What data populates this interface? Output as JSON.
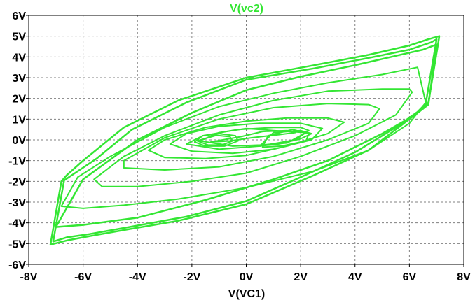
{
  "chart_data": {
    "type": "line",
    "title": "V(vc2)",
    "xlabel": "V(VC1)",
    "ylabel": "",
    "xlim": [
      -8,
      8
    ],
    "ylim": [
      -6,
      6
    ],
    "x_ticks": [
      -8,
      -6,
      -4,
      -2,
      0,
      2,
      4,
      6,
      8
    ],
    "x_tick_labels": [
      "-8V",
      "-6V",
      "-4V",
      "-2V",
      "0V",
      "2V",
      "4V",
      "6V",
      "8V"
    ],
    "y_ticks": [
      6,
      5,
      4,
      3,
      2,
      1,
      0,
      -1,
      -2,
      -3,
      -4,
      -5,
      -6
    ],
    "y_tick_labels": [
      "6V",
      "5V",
      "4V",
      "3V",
      "2V",
      "1V",
      "0V",
      "-1V",
      "-2V",
      "-3V",
      "-4V",
      "-5V",
      "-6V"
    ],
    "grid": true,
    "legend": "none",
    "colors": {
      "trace": "#33e633",
      "title": "#33e633",
      "grid": "#808080",
      "frame": "#000000"
    },
    "series": [
      {
        "values_description": "hysteresis orbit",
        "x": [
          7.1,
          6.7,
          6.5,
          5.8,
          4.5,
          2.5,
          0.0,
          -2.5,
          -4.5,
          -6.0,
          -6.6,
          -7.2,
          -6.8,
          -6.6,
          -6.0,
          -4.5,
          -2.5,
          0.0,
          2.5,
          4.5,
          6.0,
          6.7,
          7.1
        ],
        "y": [
          5.0,
          1.8,
          1.5,
          0.8,
          -0.5,
          -1.7,
          -3.1,
          -3.9,
          -4.35,
          -4.7,
          -4.85,
          -5.05,
          -2.0,
          -1.7,
          -1.0,
          0.6,
          1.9,
          3.0,
          3.6,
          4.1,
          4.55,
          4.85,
          5.0
        ]
      },
      {
        "x": [
          7.0,
          6.6,
          6.3,
          5.5,
          4.0,
          2.0,
          0.0,
          -2.2,
          -4.3,
          -5.8,
          -6.6,
          -7.1,
          -6.7,
          -6.3,
          -5.5,
          -4.2,
          -2.2,
          0.0,
          2.5,
          4.5,
          6.0,
          6.8,
          7.0
        ],
        "y": [
          4.85,
          1.75,
          1.35,
          0.6,
          -0.6,
          -1.8,
          -2.95,
          -3.7,
          -4.2,
          -4.55,
          -4.7,
          -4.9,
          -1.95,
          -1.6,
          -0.9,
          0.5,
          1.8,
          2.9,
          3.45,
          3.95,
          4.35,
          4.7,
          4.85
        ]
      },
      {
        "x": [
          7.0,
          6.7,
          6.2,
          5.0,
          3.0,
          1.0,
          -1.5,
          -4.0,
          -6.0,
          -7.0,
          -6.0,
          -4.0,
          -2.0,
          0.0,
          2.0,
          4.0,
          5.5,
          6.5,
          7.0
        ],
        "y": [
          4.6,
          1.7,
          1.2,
          0.3,
          -1.0,
          -1.9,
          -2.9,
          -3.75,
          -4.1,
          -4.2,
          -1.9,
          0.0,
          1.3,
          2.4,
          3.05,
          3.6,
          4.05,
          4.35,
          4.6
        ]
      },
      {
        "x": [
          6.6,
          6.0,
          4.5,
          2.5,
          0.0,
          -2.5,
          -4.5,
          -6.0,
          -6.8,
          -6.2,
          -5.0,
          -3.0,
          -1.0,
          1.0,
          3.0,
          5.0,
          6.3,
          6.6
        ],
        "y": [
          1.8,
          0.8,
          -0.5,
          -1.5,
          -2.3,
          -2.85,
          -3.15,
          -3.3,
          -3.2,
          -1.8,
          -0.8,
          0.6,
          1.6,
          2.25,
          2.75,
          3.15,
          3.5,
          1.8
        ]
      },
      {
        "x": [
          6.1,
          5.5,
          4.0,
          2.0,
          0.0,
          -2.0,
          -4.0,
          -5.3,
          -5.6,
          -4.5,
          -3.0,
          -1.0,
          1.0,
          3.0,
          5.0,
          6.0,
          6.1
        ],
        "y": [
          2.3,
          1.2,
          0.2,
          -0.8,
          -1.6,
          -2.0,
          -2.25,
          -2.25,
          -1.9,
          -0.8,
          0.2,
          1.2,
          1.9,
          2.35,
          2.45,
          2.45,
          2.3
        ]
      },
      {
        "x": [
          4.9,
          4.5,
          3.0,
          1.0,
          -1.0,
          -3.0,
          -4.5,
          -4.5,
          -3.0,
          -1.0,
          1.0,
          3.0,
          4.5,
          4.9
        ],
        "y": [
          1.5,
          0.8,
          0.0,
          -0.8,
          -1.3,
          -1.45,
          -1.35,
          -1.0,
          0.1,
          1.0,
          1.55,
          1.75,
          1.7,
          1.5
        ]
      },
      {
        "x": [
          3.6,
          3.0,
          1.5,
          0.0,
          -1.5,
          -3.0,
          -3.6,
          -3.0,
          -1.5,
          0.0,
          1.5,
          3.0,
          3.6
        ],
        "y": [
          0.85,
          0.3,
          -0.3,
          -0.75,
          -0.9,
          -0.85,
          -0.5,
          0.0,
          0.6,
          0.9,
          1.05,
          1.05,
          0.85
        ]
      },
      {
        "x": [
          2.8,
          2.4,
          1.0,
          -0.5,
          -2.0,
          -2.8,
          -2.2,
          -1.0,
          0.5,
          2.0,
          2.8
        ],
        "y": [
          0.55,
          0.0,
          -0.45,
          -0.65,
          -0.55,
          -0.2,
          0.3,
          0.65,
          0.8,
          0.8,
          0.55
        ]
      },
      {
        "x": [
          2.3,
          1.8,
          0.5,
          -1.0,
          -2.2,
          -1.6,
          -0.3,
          1.0,
          2.0,
          2.3
        ],
        "y": [
          0.45,
          0.0,
          -0.3,
          -0.45,
          -0.2,
          0.2,
          0.5,
          0.6,
          0.6,
          0.45
        ]
      },
      {
        "x": [
          2.2,
          1.5,
          0.5,
          -0.5,
          -1.7,
          -1.0,
          0.0,
          1.0,
          2.2
        ],
        "y": [
          0.35,
          -0.15,
          -0.25,
          -0.3,
          -0.05,
          0.35,
          0.55,
          0.45,
          0.35
        ]
      },
      {
        "x": [
          -1.9,
          -1.5,
          -0.8,
          -0.3,
          -0.4,
          -1.0,
          -1.6,
          -1.9
        ],
        "y": [
          -0.1,
          -0.3,
          -0.3,
          -0.05,
          0.2,
          0.3,
          0.2,
          -0.1
        ]
      },
      {
        "x": [
          -1.8,
          -1.4,
          -0.9,
          -0.5,
          -0.6,
          -1.1,
          -1.8
        ],
        "y": [
          -0.05,
          -0.25,
          -0.25,
          -0.05,
          0.15,
          0.22,
          -0.05
        ]
      },
      {
        "x": [
          -1.3,
          -0.6,
          0.2,
          1.2,
          1.8,
          1.5,
          0.6,
          -0.2,
          -1.3
        ],
        "y": [
          -0.1,
          -0.05,
          0.1,
          0.25,
          0.35,
          0.45,
          0.4,
          0.15,
          -0.1
        ]
      },
      {
        "x": [
          0.5,
          1.2,
          2.0,
          2.4,
          2.0,
          1.0,
          0.5
        ],
        "y": [
          -0.3,
          -0.2,
          0.05,
          0.3,
          0.45,
          0.35,
          -0.3
        ]
      },
      {
        "x": [
          0.6,
          1.3,
          2.2,
          2.3,
          1.7,
          0.8,
          0.6
        ],
        "y": [
          -0.35,
          -0.3,
          -0.05,
          0.3,
          0.5,
          0.2,
          -0.35
        ]
      }
    ]
  }
}
